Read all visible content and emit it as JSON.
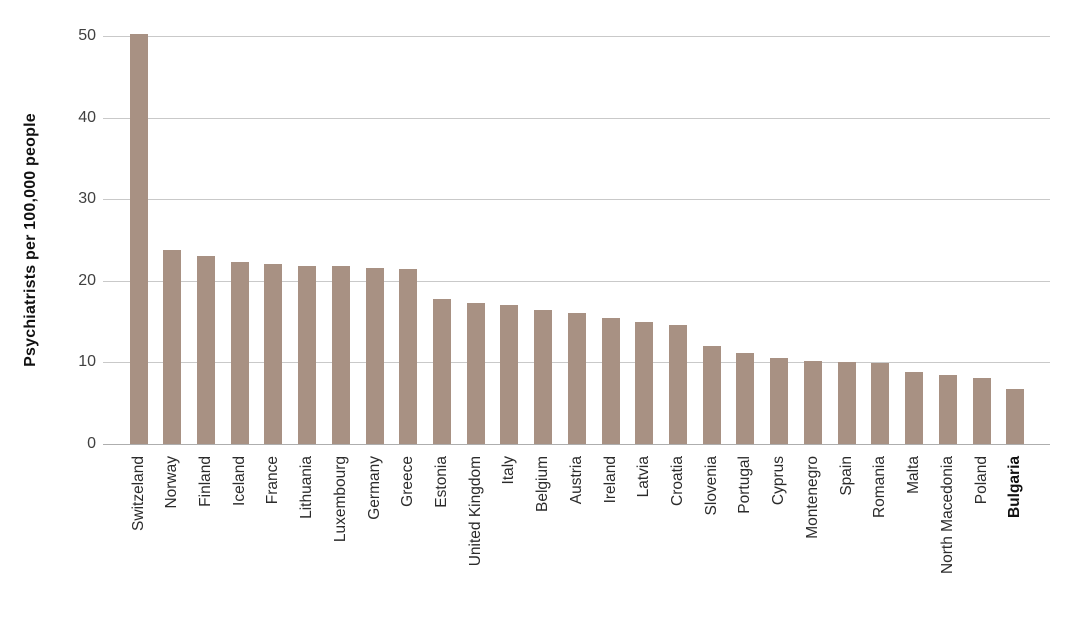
{
  "chart_data": {
    "type": "bar",
    "title": "",
    "ylabel": "Psychiatrists per 100,000 people",
    "xlabel": "",
    "categories": [
      "Switzeland",
      "Norway",
      "Finland",
      "Iceland",
      "France",
      "Lithuania",
      "Luxembourg",
      "Germany",
      "Greece",
      "Estonia",
      "United Kingdom",
      "Italy",
      "Belgium",
      "Austria",
      "Ireland",
      "Latvia",
      "Croatia",
      "Slovenia",
      "Portugal",
      "Cyprus",
      "Montenegro",
      "Spain",
      "Romania",
      "Malta",
      "North Macedonia",
      "Poland",
      "Bulgaria"
    ],
    "values": [
      50.3,
      23.8,
      23.0,
      22.3,
      22.1,
      21.8,
      21.8,
      21.6,
      21.4,
      17.8,
      17.3,
      17.0,
      16.4,
      16.1,
      15.5,
      15.0,
      14.6,
      12.0,
      11.2,
      10.5,
      10.2,
      10.0,
      9.9,
      8.8,
      8.5,
      8.1,
      6.8
    ],
    "ylim": [
      0,
      50
    ],
    "yticks": [
      0,
      10,
      20,
      30,
      40,
      50
    ],
    "grid": "horizontal-only",
    "legend": "none",
    "bar_color": "#a89183",
    "gridline_color": "#c9c9c9",
    "emphasized_category": "Bulgaria"
  }
}
